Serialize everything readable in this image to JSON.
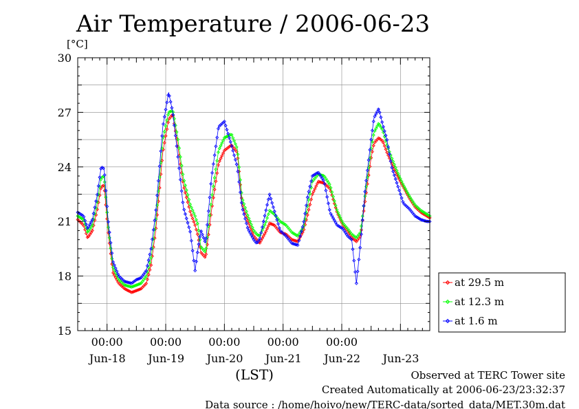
{
  "chart_data": {
    "type": "line",
    "title": "Air Temperature / 2006-06-23",
    "ylabel": "[°C]",
    "xlabel": "(LST)",
    "ylim": [
      15,
      30
    ],
    "yticks": [
      "15",
      "18",
      "21",
      "24",
      "27",
      "30"
    ],
    "xlim": [
      0,
      6
    ],
    "x_unit": "days since Jun-17 12:00 LST",
    "time_ticks": [
      "00:00",
      "00:00",
      "00:00",
      "00:00",
      "00:00"
    ],
    "day_labels": [
      "Jun-18",
      "Jun-19",
      "Jun-20",
      "Jun-21",
      "Jun-22",
      "Jun-23"
    ],
    "grid": true,
    "legend_position": "right",
    "series": [
      {
        "name": "at 29.5 m",
        "color": "#ff0000",
        "x": [
          0.0,
          0.1,
          0.17,
          0.25,
          0.33,
          0.4,
          0.45,
          0.52,
          0.6,
          0.7,
          0.8,
          0.92,
          1.0,
          1.08,
          1.17,
          1.25,
          1.33,
          1.4,
          1.45,
          1.55,
          1.62,
          1.7,
          1.8,
          1.92,
          2.0,
          2.05,
          2.1,
          2.18,
          2.28,
          2.4,
          2.5,
          2.62,
          2.72,
          2.8,
          2.9,
          3.0,
          3.05,
          3.1,
          3.2,
          3.27,
          3.35,
          3.45,
          3.55,
          3.65,
          3.75,
          3.85,
          3.92,
          4.0,
          4.1,
          4.2,
          4.3,
          4.42,
          4.52,
          4.6,
          4.67,
          4.75,
          4.82,
          4.9,
          5.0,
          5.05,
          5.13,
          5.2,
          5.27,
          5.35,
          5.45,
          5.55,
          5.65,
          5.75,
          5.85,
          5.95,
          6.0
        ],
        "y": [
          21.1,
          20.8,
          20.1,
          20.5,
          21.6,
          22.9,
          23.0,
          20.4,
          18.2,
          17.6,
          17.3,
          17.1,
          17.2,
          17.3,
          17.6,
          18.6,
          20.5,
          23.0,
          24.8,
          26.6,
          26.9,
          25.3,
          23.0,
          21.5,
          20.8,
          20.2,
          19.3,
          19.0,
          21.6,
          24.2,
          24.9,
          25.2,
          24.8,
          22.0,
          21.0,
          20.2,
          20.0,
          19.8,
          20.4,
          20.9,
          20.8,
          20.4,
          20.3,
          20.0,
          19.9,
          20.5,
          21.4,
          22.5,
          23.2,
          23.1,
          22.8,
          21.5,
          20.8,
          20.5,
          20.1,
          19.9,
          20.2,
          22.2,
          24.5,
          25.3,
          25.6,
          25.4,
          24.8,
          24.2,
          23.5,
          22.9,
          22.3,
          21.8,
          21.5,
          21.3,
          21.2
        ]
      },
      {
        "name": "at 12.3 m",
        "color": "#00ff00",
        "x": [
          0.0,
          0.1,
          0.17,
          0.25,
          0.33,
          0.4,
          0.45,
          0.52,
          0.6,
          0.7,
          0.8,
          0.92,
          1.0,
          1.08,
          1.17,
          1.25,
          1.33,
          1.4,
          1.45,
          1.55,
          1.62,
          1.7,
          1.8,
          1.92,
          2.0,
          2.05,
          2.1,
          2.18,
          2.28,
          2.4,
          2.5,
          2.62,
          2.72,
          2.8,
          2.9,
          3.0,
          3.05,
          3.1,
          3.2,
          3.27,
          3.35,
          3.45,
          3.55,
          3.65,
          3.75,
          3.85,
          3.92,
          4.0,
          4.1,
          4.2,
          4.3,
          4.42,
          4.52,
          4.6,
          4.67,
          4.75,
          4.82,
          4.9,
          5.0,
          5.05,
          5.13,
          5.2,
          5.27,
          5.35,
          5.45,
          5.55,
          5.65,
          5.75,
          5.85,
          5.95,
          6.0
        ],
        "y": [
          21.3,
          21.1,
          20.4,
          20.8,
          22.0,
          23.4,
          23.5,
          20.7,
          18.5,
          17.8,
          17.5,
          17.4,
          17.5,
          17.6,
          18.0,
          19.0,
          21.0,
          23.6,
          25.5,
          27.0,
          27.1,
          25.7,
          23.4,
          21.9,
          21.3,
          20.8,
          19.6,
          19.3,
          22.2,
          24.9,
          25.6,
          25.8,
          25.0,
          22.3,
          21.3,
          20.5,
          20.3,
          20.2,
          20.9,
          21.6,
          21.4,
          21.0,
          20.8,
          20.4,
          20.2,
          20.7,
          21.9,
          23.2,
          23.6,
          23.5,
          23.0,
          21.6,
          20.9,
          20.6,
          20.3,
          20.1,
          20.4,
          22.5,
          25.0,
          25.9,
          26.4,
          26.0,
          25.2,
          24.5,
          23.7,
          23.0,
          22.4,
          21.9,
          21.6,
          21.4,
          21.3
        ]
      },
      {
        "name": "at 1.6 m",
        "color": "#0000ff",
        "x": [
          0.0,
          0.1,
          0.17,
          0.25,
          0.33,
          0.4,
          0.45,
          0.52,
          0.6,
          0.7,
          0.8,
          0.92,
          1.0,
          1.08,
          1.17,
          1.25,
          1.33,
          1.4,
          1.45,
          1.55,
          1.62,
          1.7,
          1.8,
          1.92,
          2.0,
          2.05,
          2.1,
          2.18,
          2.28,
          2.4,
          2.5,
          2.62,
          2.72,
          2.8,
          2.9,
          3.0,
          3.05,
          3.1,
          3.2,
          3.27,
          3.35,
          3.45,
          3.55,
          3.65,
          3.75,
          3.85,
          3.92,
          4.0,
          4.1,
          4.2,
          4.3,
          4.42,
          4.52,
          4.6,
          4.67,
          4.75,
          4.82,
          4.9,
          5.0,
          5.05,
          5.13,
          5.2,
          5.27,
          5.35,
          5.45,
          5.55,
          5.65,
          5.75,
          5.85,
          5.95,
          6.0
        ],
        "y": [
          21.5,
          21.3,
          20.6,
          21.1,
          22.4,
          24.0,
          23.9,
          21.0,
          18.8,
          18.0,
          17.7,
          17.6,
          17.8,
          17.9,
          18.3,
          19.5,
          21.5,
          24.2,
          26.2,
          28.1,
          27.0,
          24.8,
          21.8,
          20.4,
          18.3,
          19.5,
          20.5,
          19.8,
          23.4,
          26.2,
          26.5,
          25.2,
          24.0,
          21.8,
          20.6,
          20.0,
          19.8,
          20.0,
          21.5,
          22.5,
          21.6,
          20.5,
          20.2,
          19.8,
          19.7,
          20.9,
          22.4,
          23.5,
          23.7,
          23.2,
          21.5,
          20.8,
          20.6,
          20.2,
          20.0,
          17.6,
          19.8,
          22.8,
          25.5,
          26.7,
          27.2,
          26.3,
          25.5,
          24.0,
          23.0,
          22.0,
          21.7,
          21.3,
          21.1,
          21.0,
          21.0
        ]
      }
    ]
  },
  "footer": {
    "line1": "Observed at TERC Tower site",
    "line2": "Created Automatically at 2006-06-23/23:32:37",
    "line3": "Data source : /home/hoivo/new/TERC-data/sorted_data/MET.30m.dat"
  }
}
